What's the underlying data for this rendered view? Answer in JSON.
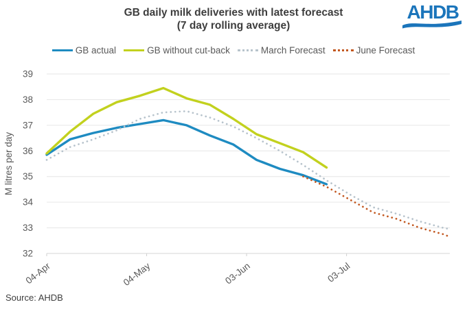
{
  "logo": {
    "text": "AHDB",
    "color": "#1b75bb"
  },
  "source": {
    "text": "Source: AHDB"
  },
  "chart_data": {
    "type": "line",
    "title": "GB daily milk deliveries with latest forecast",
    "subtitle": "(7 day rolling average)",
    "ylabel": "M litres per day",
    "ylim": [
      32,
      39
    ],
    "yticks": [
      39,
      38,
      37,
      36,
      35,
      34,
      33,
      32
    ],
    "grid": true,
    "legend_position": "top",
    "x_axis": {
      "unit": "days since 04-Apr",
      "range_days": [
        0,
        121
      ],
      "ticks": [
        {
          "label": "04-Apr",
          "day": 0
        },
        {
          "label": "04-May",
          "day": 30
        },
        {
          "label": "03-Jun",
          "day": 60
        },
        {
          "label": "03-Jul",
          "day": 90
        }
      ]
    },
    "series": [
      {
        "name": "GB actual",
        "color": "#1e8bc1",
        "style": "solid",
        "x": [
          0,
          7,
          14,
          21,
          28,
          35,
          42,
          49,
          56,
          63,
          70,
          77,
          84
        ],
        "values": [
          35.85,
          36.45,
          36.7,
          36.9,
          37.05,
          37.2,
          37.0,
          36.6,
          36.25,
          35.65,
          35.3,
          35.05,
          34.7
        ]
      },
      {
        "name": "GB without cut-back",
        "color": "#c2d11e",
        "style": "solid",
        "x": [
          0,
          7,
          14,
          21,
          28,
          35,
          42,
          49,
          56,
          63,
          70,
          77,
          84
        ],
        "values": [
          35.9,
          36.75,
          37.45,
          37.9,
          38.15,
          38.45,
          38.05,
          37.8,
          37.25,
          36.65,
          36.3,
          35.95,
          35.35
        ]
      },
      {
        "name": "March Forecast",
        "color": "#b7c3cc",
        "style": "dotted",
        "x": [
          0,
          7,
          14,
          21,
          28,
          35,
          42,
          49,
          56,
          63,
          70,
          77,
          84,
          91,
          98,
          105,
          112,
          119,
          121
        ],
        "values": [
          35.65,
          36.15,
          36.45,
          36.8,
          37.25,
          37.5,
          37.55,
          37.3,
          36.95,
          36.5,
          36.0,
          35.45,
          34.85,
          34.3,
          33.8,
          33.55,
          33.25,
          33.0,
          32.95
        ]
      },
      {
        "name": "June Forecast",
        "color": "#c2571f",
        "style": "dotted",
        "x": [
          77,
          84,
          91,
          98,
          105,
          112,
          119,
          121
        ],
        "values": [
          35.0,
          34.6,
          34.1,
          33.6,
          33.35,
          33.0,
          32.75,
          32.65
        ]
      }
    ]
  }
}
